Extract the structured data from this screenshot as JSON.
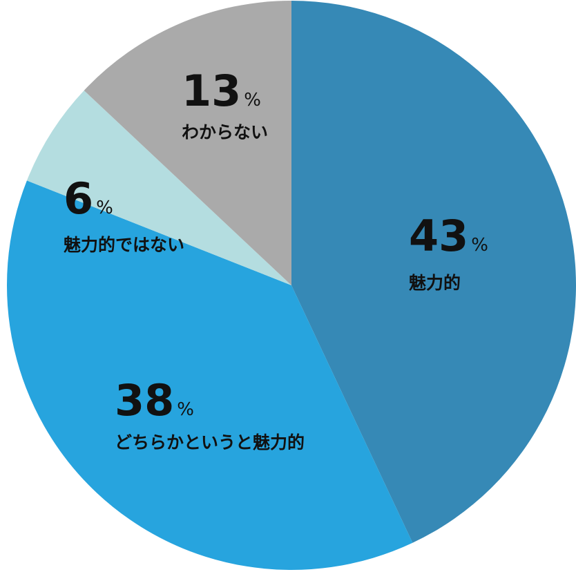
{
  "chart_data": {
    "type": "pie",
    "start_angle_deg": 0,
    "direction": "clockwise",
    "unit": "%",
    "slices": [
      {
        "label": "魅力的",
        "value": 43,
        "color": "#3689b6"
      },
      {
        "label": "どちらかというと魅力的",
        "value": 38,
        "color": "#27a4de"
      },
      {
        "label": "魅力的ではない",
        "value": 6,
        "color": "#b4dde0"
      },
      {
        "label": "わからない",
        "value": 13,
        "color": "#aaaaaa"
      }
    ]
  }
}
